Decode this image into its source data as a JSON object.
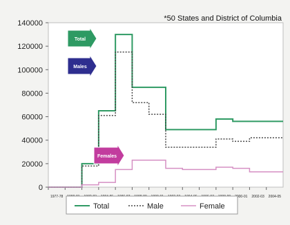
{
  "note": "*50 States and District of Columbia",
  "chart_data": {
    "type": "line",
    "title": "",
    "xlabel": "",
    "ylabel": "",
    "ylim": [
      0,
      140000
    ],
    "yticks": [
      0,
      20000,
      40000,
      60000,
      80000,
      100000,
      120000,
      140000
    ],
    "ytick_labels": [
      "0",
      "20000",
      "40000",
      "60000",
      "80000",
      "100000",
      "120000",
      "140000"
    ],
    "x_ticks": [
      "1977-78",
      "1980-81",
      "1982-83",
      "1984-85",
      "1986-87",
      "1988-89",
      "1990-91",
      "1992-93",
      "1994-95",
      "1996-97",
      "1998-99",
      "2000-01",
      "2002-03",
      "2004-05"
    ],
    "grid": false,
    "legend_position": "bottom",
    "series": [
      {
        "name": "Total",
        "color": "#2e9a63",
        "style": "solid",
        "values": [
          0,
          0,
          20000,
          65000,
          130000,
          85000,
          85000,
          49000,
          49000,
          49000,
          58000,
          56000,
          56000,
          56000
        ]
      },
      {
        "name": "Male",
        "color": "#444444",
        "style": "dotted",
        "values": [
          0,
          0,
          18000,
          61000,
          115000,
          72000,
          62000,
          34000,
          34000,
          34000,
          41000,
          39000,
          42000,
          42000
        ]
      },
      {
        "name": "Female",
        "color": "#d58fc3",
        "style": "solid",
        "values": [
          0,
          0,
          2000,
          4000,
          15000,
          23000,
          23000,
          16000,
          15000,
          15000,
          17000,
          16000,
          13000,
          13000
        ]
      }
    ],
    "annotations": [
      {
        "label": "Total",
        "color": "#2e9a63"
      },
      {
        "label": "Males",
        "color": "#2e2e8f"
      },
      {
        "label": "Females",
        "color": "#c23c9e"
      }
    ]
  }
}
